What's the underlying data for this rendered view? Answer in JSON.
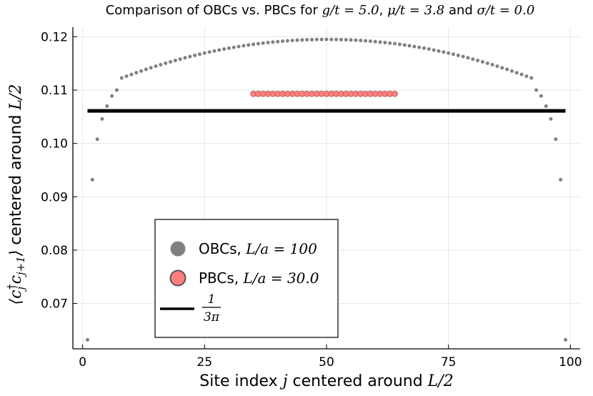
{
  "chart_data": {
    "type": "scatter",
    "title_prefix": "Comparison of OBCs vs. PBCs for ",
    "title_params": [
      {
        "symbol": "g/t",
        "value": "5.0",
        "sep": ", "
      },
      {
        "symbol": "μ/t",
        "value": "3.8",
        "sep": " and "
      },
      {
        "symbol": "σ/t",
        "value": "0.0",
        "sep": ""
      }
    ],
    "xlabel_prefix": "Site index ",
    "xlabel_var": "j",
    "xlabel_suffix": " centered around ",
    "xlabel_math": "L/2",
    "ylabel_text": " centered around ",
    "ylabel_math": "L/2",
    "xlim": [
      -2,
      102
    ],
    "ylim": [
      0.0615,
      0.1218
    ],
    "xticks": [
      0,
      25,
      50,
      75,
      100
    ],
    "yticks": [
      0.07,
      0.08,
      0.09,
      0.1,
      0.11,
      0.12
    ],
    "ytick_labels": [
      "0.07",
      "0.08",
      "0.09",
      "0.10",
      "0.11",
      "0.12"
    ],
    "grid": true,
    "legend_position": "bottom-left",
    "series": [
      {
        "name": "OBCs",
        "legend_math": "L/a = 100",
        "color": "#808080",
        "x_start": 1,
        "x_end": 99,
        "y_center": 0.1195,
        "y_curvature": 4.1e-06,
        "edge_values": {
          "1": 0.0632,
          "2": 0.0932,
          "3": 0.1008,
          "4": 0.1046,
          "5": 0.107,
          "6": 0.1089,
          "7": 0.11,
          "99": 0.0632,
          "98": 0.0932,
          "97": 0.1008,
          "96": 0.1046,
          "95": 0.107,
          "94": 0.1089,
          "93": 0.11
        }
      },
      {
        "name": "PBCs",
        "legend_math": "L/a = 30.0",
        "color": "#ff7f7f",
        "x_start": 35,
        "x_end": 64,
        "y_value": 0.1093
      }
    ],
    "reference_line": {
      "label_num": "1",
      "label_den": "3π",
      "value": 0.1061,
      "x_range": [
        1,
        99
      ],
      "color": "#000000"
    }
  }
}
